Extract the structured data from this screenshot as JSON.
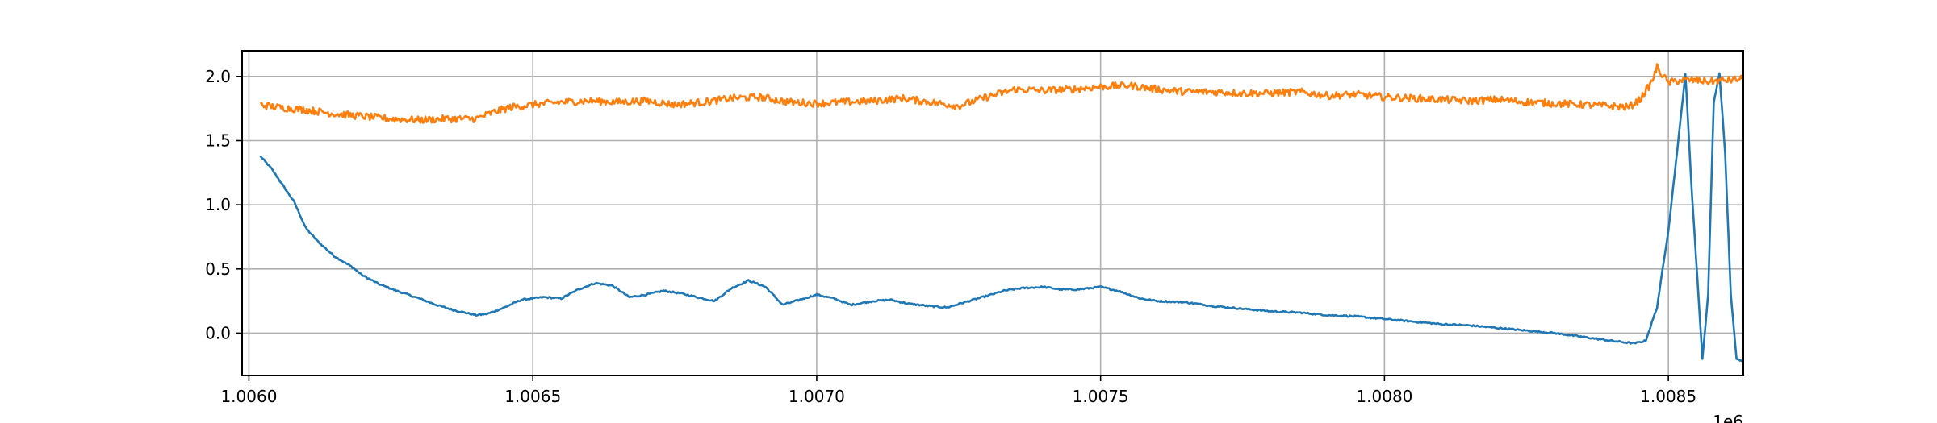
{
  "chart_data": {
    "type": "line",
    "title": "",
    "xlabel": "",
    "ylabel": "",
    "x_offset_label": "1e6",
    "xlim": [
      1.005988,
      1.008632
    ],
    "ylim": [
      -0.33,
      2.2
    ],
    "grid": true,
    "legend": "none",
    "x_ticks": [
      {
        "value": 1.006,
        "label": "1.0060"
      },
      {
        "value": 1.0065,
        "label": "1.0065"
      },
      {
        "value": 1.007,
        "label": "1.0070"
      },
      {
        "value": 1.0075,
        "label": "1.0075"
      },
      {
        "value": 1.008,
        "label": "1.0080"
      },
      {
        "value": 1.0085,
        "label": "1.0085"
      }
    ],
    "y_ticks": [
      {
        "value": 0.0,
        "label": "0.0"
      },
      {
        "value": 0.5,
        "label": "0.5"
      },
      {
        "value": 1.0,
        "label": "1.0"
      },
      {
        "value": 1.5,
        "label": "1.5"
      },
      {
        "value": 2.0,
        "label": "2.0"
      }
    ],
    "series": [
      {
        "color": "#1f77b4",
        "noise": 0.006,
        "x": [
          1.00602,
          1.00604,
          1.00606,
          1.00608,
          1.0061,
          1.00612,
          1.00615,
          1.00618,
          1.0062,
          1.00623,
          1.00626,
          1.0063,
          1.00633,
          1.00636,
          1.0064,
          1.00642,
          1.00645,
          1.00648,
          1.00652,
          1.00655,
          1.00658,
          1.00661,
          1.00664,
          1.00667,
          1.0067,
          1.00673,
          1.00676,
          1.00679,
          1.00682,
          1.00685,
          1.00688,
          1.00691,
          1.00694,
          1.00697,
          1.007,
          1.00703,
          1.00706,
          1.0071,
          1.00713,
          1.00716,
          1.0072,
          1.00723,
          1.00726,
          1.0073,
          1.00733,
          1.00736,
          1.0074,
          1.00743,
          1.00746,
          1.0075,
          1.00753,
          1.00757,
          1.0076,
          1.00765,
          1.0077,
          1.00775,
          1.0078,
          1.00785,
          1.0079,
          1.00795,
          1.008,
          1.00805,
          1.0081,
          1.00815,
          1.0082,
          1.00825,
          1.0083,
          1.00835,
          1.0084,
          1.00842,
          1.00844,
          1.00846,
          1.00848,
          1.0085,
          1.00852,
          1.00853,
          1.00854,
          1.00856,
          1.00857,
          1.00858,
          1.00859,
          1.0086,
          1.00861,
          1.00862,
          1.00863
        ],
        "y": [
          1.38,
          1.28,
          1.15,
          1.02,
          0.82,
          0.72,
          0.6,
          0.52,
          0.45,
          0.38,
          0.33,
          0.27,
          0.22,
          0.18,
          0.14,
          0.15,
          0.2,
          0.26,
          0.28,
          0.27,
          0.34,
          0.39,
          0.37,
          0.28,
          0.3,
          0.33,
          0.31,
          0.28,
          0.25,
          0.35,
          0.41,
          0.36,
          0.22,
          0.26,
          0.3,
          0.27,
          0.22,
          0.25,
          0.26,
          0.23,
          0.21,
          0.2,
          0.24,
          0.29,
          0.33,
          0.35,
          0.36,
          0.34,
          0.34,
          0.36,
          0.33,
          0.27,
          0.25,
          0.24,
          0.21,
          0.19,
          0.17,
          0.16,
          0.14,
          0.13,
          0.11,
          0.09,
          0.07,
          0.06,
          0.04,
          0.02,
          0.0,
          -0.03,
          -0.06,
          -0.07,
          -0.08,
          -0.06,
          0.2,
          0.8,
          1.6,
          2.02,
          1.2,
          -0.2,
          0.3,
          1.8,
          2.02,
          1.4,
          0.3,
          -0.2,
          -0.22
        ]
      },
      {
        "color": "#ff7f0e",
        "noise": 0.028,
        "x": [
          1.00602,
          1.00605,
          1.0061,
          1.00615,
          1.0062,
          1.00625,
          1.0063,
          1.00635,
          1.0064,
          1.00643,
          1.00646,
          1.0065,
          1.00655,
          1.0066,
          1.00665,
          1.0067,
          1.00675,
          1.0068,
          1.00685,
          1.0069,
          1.00695,
          1.007,
          1.00705,
          1.0071,
          1.00715,
          1.0072,
          1.00725,
          1.0073,
          1.00735,
          1.0074,
          1.00745,
          1.0075,
          1.00755,
          1.0076,
          1.00765,
          1.0077,
          1.00775,
          1.0078,
          1.00785,
          1.0079,
          1.00795,
          1.008,
          1.00805,
          1.0081,
          1.00815,
          1.0082,
          1.00825,
          1.0083,
          1.00835,
          1.0084,
          1.00843,
          1.00845,
          1.00847,
          1.00848,
          1.0085,
          1.00852,
          1.00855,
          1.00857,
          1.0086,
          1.00863
        ],
        "y": [
          1.78,
          1.76,
          1.74,
          1.71,
          1.69,
          1.67,
          1.66,
          1.67,
          1.67,
          1.72,
          1.76,
          1.78,
          1.8,
          1.81,
          1.8,
          1.81,
          1.78,
          1.8,
          1.83,
          1.84,
          1.8,
          1.79,
          1.8,
          1.81,
          1.83,
          1.8,
          1.77,
          1.84,
          1.9,
          1.89,
          1.9,
          1.92,
          1.93,
          1.9,
          1.88,
          1.88,
          1.87,
          1.87,
          1.88,
          1.85,
          1.86,
          1.84,
          1.83,
          1.82,
          1.81,
          1.82,
          1.8,
          1.79,
          1.78,
          1.77,
          1.76,
          1.82,
          1.95,
          2.07,
          1.95,
          1.97,
          1.97,
          1.96,
          1.97,
          1.98
        ]
      }
    ]
  }
}
